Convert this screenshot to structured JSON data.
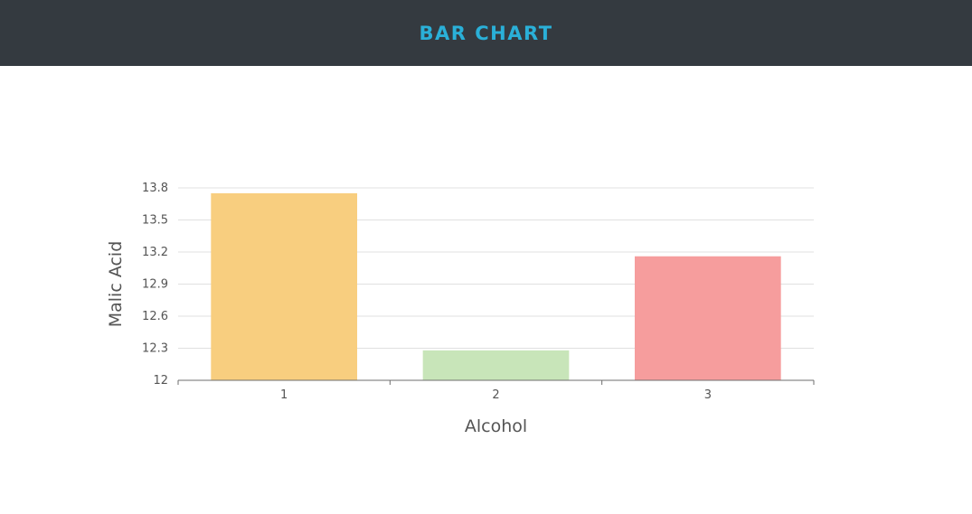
{
  "header": {
    "title": "BAR CHART"
  },
  "chart_data": {
    "type": "bar",
    "title": "",
    "xlabel": "Alcohol",
    "ylabel": "Malic Acid",
    "categories": [
      "1",
      "2",
      "3"
    ],
    "values": [
      13.75,
      12.28,
      13.16
    ],
    "ylim": [
      12,
      13.8
    ],
    "yticks": [
      "12",
      "12.3",
      "12.6",
      "12.9",
      "13.2",
      "13.5",
      "13.8"
    ],
    "colors": [
      "#f8ce7f",
      "#c8e5b9",
      "#f69d9d"
    ],
    "grid": true,
    "legend": "none"
  }
}
